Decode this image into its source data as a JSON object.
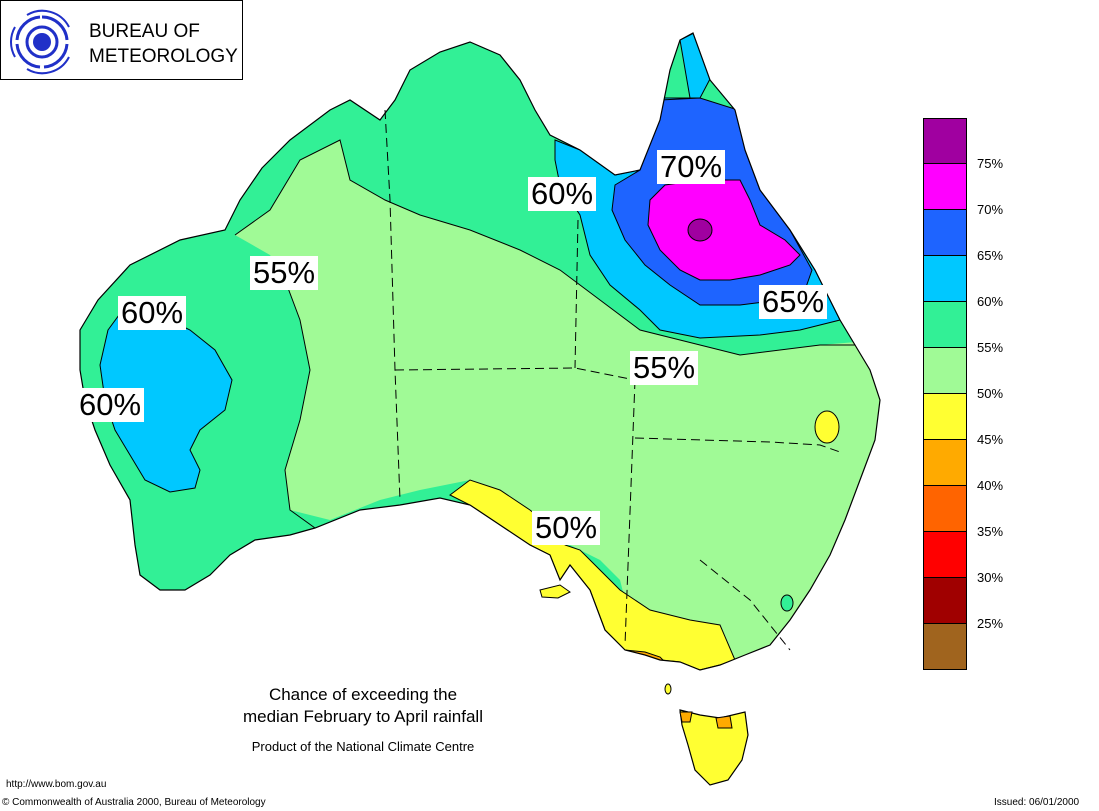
{
  "logo": {
    "line1": "BUREAU OF",
    "line2": "METEOROLOGY",
    "emblem_icon": "bom-swirl-icon"
  },
  "map": {
    "labels": [
      {
        "id": "nw-55",
        "text": "55%"
      },
      {
        "id": "wa-60-north",
        "text": "60%"
      },
      {
        "id": "wa-60-south",
        "text": "60%"
      },
      {
        "id": "qld-60",
        "text": "60%"
      },
      {
        "id": "qld-70",
        "text": "70%"
      },
      {
        "id": "qld-65",
        "text": "65%"
      },
      {
        "id": "central-55",
        "text": "55%"
      },
      {
        "id": "south-50",
        "text": "50%"
      }
    ]
  },
  "legend": {
    "items": [
      {
        "label": "75%",
        "color": "#a000a0"
      },
      {
        "label": "70%",
        "color": "#ff00ff"
      },
      {
        "label": "65%",
        "color": "#1e64ff"
      },
      {
        "label": "60%",
        "color": "#00c8ff"
      },
      {
        "label": "55%",
        "color": "#32f096"
      },
      {
        "label": "50%",
        "color": "#a0fa96"
      },
      {
        "label": "45%",
        "color": "#ffff32"
      },
      {
        "label": "40%",
        "color": "#ffaa00"
      },
      {
        "label": "35%",
        "color": "#ff6400"
      },
      {
        "label": "30%",
        "color": "#ff0000"
      },
      {
        "label": "25%",
        "color": "#a00000"
      },
      {
        "label": "",
        "color": "#a0641e"
      }
    ]
  },
  "caption": {
    "line1": "Chance of exceeding the",
    "line2": "median February to April rainfall",
    "line3": "Product of the National Climate Centre"
  },
  "footer": {
    "url": "http://www.bom.gov.au",
    "copyright": "© Commonwealth of Australia 2000, Bureau of Meteorology",
    "issued": "Issued: 06/01/2000"
  }
}
